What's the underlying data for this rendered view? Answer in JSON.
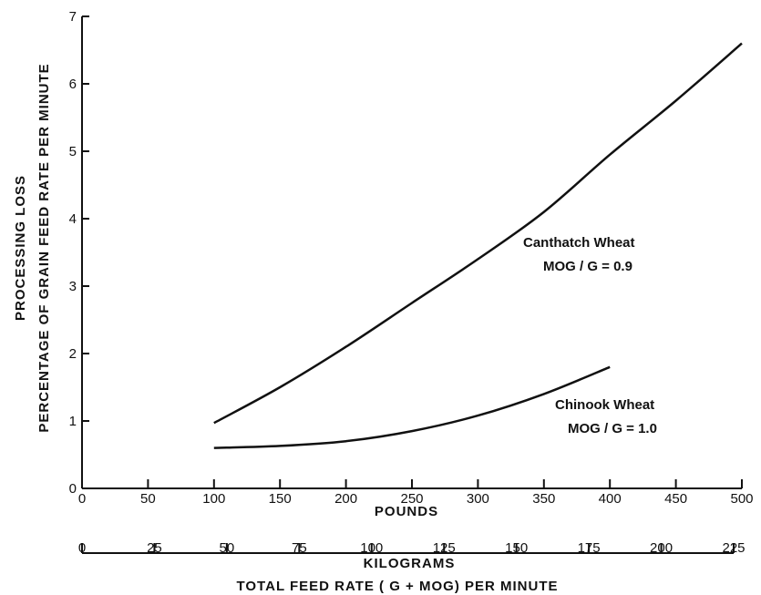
{
  "chart_data": {
    "type": "line",
    "ylabel_line1": "PROCESSING LOSS",
    "ylabel_line2": "PERCENTAGE OF GRAIN FEED RATE PER MINUTE",
    "xlabel_pounds": "POUNDS",
    "xlabel_kg": "KILOGRAMS",
    "xlabel_total": "TOTAL FEED RATE ( G + MOG) PER MINUTE",
    "xlim": [
      0,
      500
    ],
    "ylim": [
      0,
      7
    ],
    "x_ticks_pounds": [
      0,
      50,
      100,
      150,
      200,
      250,
      300,
      350,
      400,
      450,
      500
    ],
    "x_tick_labels_pounds": [
      "0",
      "50",
      "100",
      "150",
      "200",
      "250",
      "300",
      "350",
      "400",
      "450",
      "500"
    ],
    "y_ticks": [
      0,
      1,
      2,
      3,
      4,
      5,
      6,
      7
    ],
    "y_tick_labels": [
      "0",
      "1",
      "2",
      "3",
      "4",
      "5",
      "6",
      "7"
    ],
    "kg_ticks": [
      0,
      25,
      50,
      75,
      100,
      125,
      150,
      175,
      200,
      225
    ],
    "kg_tick_labels": [
      "0",
      "25",
      "50",
      "75",
      "100",
      "125",
      "150",
      "175",
      "200",
      "225"
    ],
    "series": [
      {
        "name": "Canthatch Wheat",
        "label_line1": "Canthatch  Wheat",
        "label_line2": "MOG / G = 0.9",
        "x": [
          100,
          150,
          200,
          250,
          300,
          350,
          400,
          450,
          500
        ],
        "y": [
          0.97,
          1.5,
          2.1,
          2.75,
          3.4,
          4.1,
          4.95,
          5.75,
          6.6
        ]
      },
      {
        "name": "Chinook Wheat",
        "label_line1": "Chinook  Wheat",
        "label_line2": "MOG / G = 1.0",
        "x": [
          100,
          150,
          200,
          250,
          300,
          350,
          400
        ],
        "y": [
          0.6,
          0.63,
          0.7,
          0.85,
          1.08,
          1.4,
          1.8
        ]
      }
    ]
  }
}
